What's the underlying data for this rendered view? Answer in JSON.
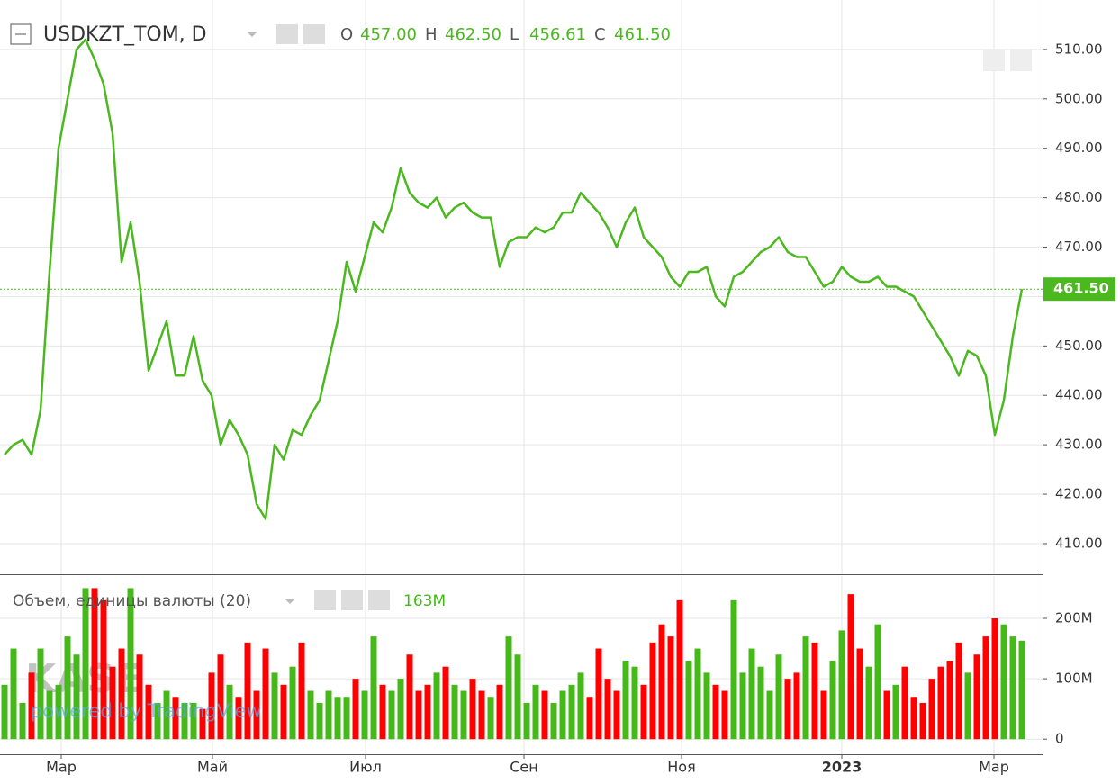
{
  "chart_data": [
    {
      "type": "line",
      "title": "USDKZT_TOM, D",
      "ohlc": [
        {
          "name": "O",
          "value": 457,
          "label": "457.00"
        },
        {
          "name": "H",
          "value": 462.5,
          "label": "462.50"
        },
        {
          "name": "L",
          "value": 456.61,
          "label": "456.61"
        },
        {
          "name": "C",
          "value": 461.5,
          "label": "461.50"
        }
      ],
      "color": "#4cb81f",
      "values": [
        428,
        430,
        431,
        428,
        437,
        465,
        490,
        500,
        510,
        512,
        508,
        503,
        493,
        467,
        475,
        463,
        445,
        450,
        455,
        444,
        444,
        452,
        443,
        440,
        430,
        435,
        432,
        428,
        418,
        415,
        430,
        427,
        433,
        432,
        436,
        439,
        447,
        455,
        467,
        461,
        468,
        475,
        473,
        478,
        486,
        481,
        479,
        478,
        480,
        476,
        478,
        479,
        477,
        476,
        476,
        466,
        471,
        472,
        472,
        474,
        473,
        474,
        477,
        477,
        481,
        479,
        477,
        474,
        470,
        475,
        478,
        472,
        470,
        468,
        464,
        462,
        465,
        465,
        466,
        460,
        458,
        464,
        465,
        467,
        469,
        470,
        472,
        469,
        468,
        468,
        465,
        462,
        463,
        466,
        464,
        463,
        463,
        464,
        462,
        462,
        461,
        460,
        457,
        454,
        451,
        448,
        444,
        449,
        448,
        444,
        432,
        439,
        452,
        461.5
      ],
      "last_label": {
        "value": 461.5,
        "label": "461.50"
      },
      "xlim": [
        -0.5,
        115.3
      ],
      "xticks": [
        {
          "value": 6.3,
          "label": "Мар"
        },
        {
          "value": 23.1,
          "label": "Май"
        },
        {
          "value": 40.1,
          "label": "Июл"
        },
        {
          "value": 57.7,
          "label": "Сен"
        },
        {
          "value": 75.2,
          "label": "Ноя"
        },
        {
          "value": 93,
          "label": "2023"
        },
        {
          "value": 109.9,
          "label": "Мар"
        }
      ],
      "ylim": [
        403.8,
        520
      ],
      "yticks": [
        {
          "value": 410,
          "label": "410.00"
        },
        {
          "value": 420,
          "label": "420.00"
        },
        {
          "value": 430,
          "label": "430.00"
        },
        {
          "value": 440,
          "label": "440.00"
        },
        {
          "value": 450,
          "label": "450.00"
        },
        {
          "value": 460,
          "label": "460.00"
        },
        {
          "value": 470,
          "label": "470.00"
        },
        {
          "value": 480,
          "label": "480.00"
        },
        {
          "value": 490,
          "label": "490.00"
        },
        {
          "value": 500,
          "label": "500.00"
        },
        {
          "value": 510,
          "label": "510.00"
        }
      ],
      "grid": true,
      "watermark": {
        "logo": "KASE",
        "credit": "powered by TradingView"
      }
    },
    {
      "type": "bar",
      "title": "Объем, единицы валюты (20)",
      "up_color": "#45b81a",
      "down_color": "#ff0000",
      "values": [
        90,
        150,
        60,
        110,
        150,
        80,
        90,
        170,
        140,
        250,
        250,
        230,
        120,
        150,
        250,
        140,
        90,
        60,
        80,
        70,
        60,
        60,
        50,
        110,
        140,
        90,
        70,
        160,
        80,
        150,
        110,
        90,
        120,
        160,
        80,
        60,
        80,
        70,
        70,
        100,
        80,
        170,
        90,
        80,
        100,
        140,
        80,
        90,
        110,
        120,
        90,
        80,
        100,
        80,
        70,
        90,
        170,
        140,
        60,
        90,
        80,
        60,
        80,
        90,
        110,
        70,
        150,
        100,
        80,
        130,
        120,
        90,
        160,
        190,
        170,
        230,
        130,
        150,
        110,
        90,
        80,
        230,
        110,
        150,
        120,
        80,
        140,
        100,
        110,
        170,
        160,
        80,
        130,
        180,
        240,
        150,
        120,
        190,
        80,
        90,
        120,
        70,
        60,
        100,
        120,
        130,
        160,
        110,
        140,
        170,
        200,
        190,
        170,
        163
      ],
      "last_label": {
        "value": 163,
        "label": "163M"
      },
      "xlim": [
        -0.5,
        115.3
      ],
      "ylim": [
        -25,
        270
      ],
      "yticks": [
        0,
        {
          "value": 100,
          "label": "100M"
        },
        {
          "value": 200,
          "label": "200M"
        }
      ],
      "grid": true
    }
  ]
}
